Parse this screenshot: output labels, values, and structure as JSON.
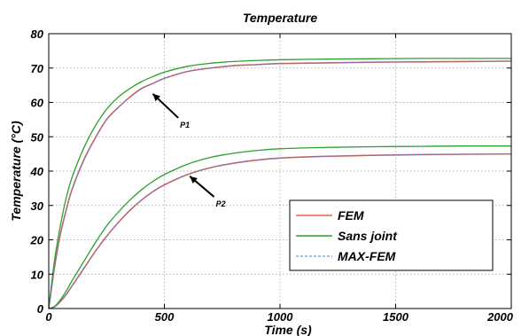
{
  "chart_data": {
    "type": "line",
    "title": "Temperature",
    "xlabel": "Time (s)",
    "ylabel": "Temperature (°C)",
    "xlim": [
      0,
      2000
    ],
    "ylim": [
      0,
      80
    ],
    "xticks": [
      0,
      500,
      1000,
      1500,
      2000
    ],
    "yticks": [
      0,
      10,
      20,
      30,
      40,
      50,
      60,
      70,
      80
    ],
    "grid": true,
    "legend_position": "bottom-right",
    "x": [
      0,
      25,
      50,
      75,
      100,
      150,
      200,
      250,
      300,
      350,
      400,
      450,
      500,
      600,
      700,
      800,
      900,
      1000,
      1200,
      1400,
      1600,
      1800,
      2000
    ],
    "series": [
      {
        "name": "FEM",
        "group": "P1",
        "color": "#e8604a",
        "values": [
          0,
          12,
          21.5,
          28.5,
          34.5,
          43,
          49.5,
          55,
          58.5,
          61.5,
          64,
          65.5,
          67,
          69,
          70,
          70.7,
          71,
          71.3,
          71.5,
          71.7,
          71.8,
          71.9,
          72
        ]
      },
      {
        "name": "Sans joint",
        "group": "P1",
        "color": "#2ca02c",
        "values": [
          0,
          14,
          24,
          32,
          38,
          46.5,
          53,
          58,
          61.5,
          64,
          66,
          67.5,
          68.8,
          70.5,
          71.4,
          71.9,
          72.2,
          72.4,
          72.6,
          72.7,
          72.8,
          72.8,
          72.8
        ]
      },
      {
        "name": "MAX-FEM",
        "group": "P1",
        "color": "#4a7fd4",
        "values": [
          0,
          12,
          21.5,
          28.5,
          34.5,
          43,
          49.5,
          55,
          58.5,
          61.5,
          64,
          65.5,
          67,
          69,
          70,
          70.7,
          71,
          71.3,
          71.5,
          71.7,
          71.8,
          71.9,
          72
        ]
      },
      {
        "name": "FEM",
        "group": "P2",
        "color": "#e8604a",
        "values": [
          0,
          0.5,
          2,
          4,
          6.5,
          11.5,
          16.5,
          21,
          25,
          28.5,
          31.5,
          34,
          36,
          39,
          41,
          42.3,
          43.2,
          43.8,
          44.3,
          44.6,
          44.8,
          44.9,
          45
        ]
      },
      {
        "name": "Sans joint",
        "group": "P2",
        "color": "#2ca02c",
        "values": [
          0,
          0.6,
          2.5,
          5,
          8,
          13.5,
          19,
          24,
          28,
          31.5,
          34.5,
          37,
          39,
          42,
          44,
          45.2,
          46,
          46.5,
          46.9,
          47.1,
          47.2,
          47.3,
          47.3
        ]
      },
      {
        "name": "MAX-FEM",
        "group": "P2",
        "color": "#4a7fd4",
        "values": [
          0,
          0.5,
          2,
          4,
          6.5,
          11.5,
          16.5,
          21,
          25,
          28.5,
          31.5,
          34,
          36,
          39,
          41,
          42.3,
          43.2,
          43.8,
          44.3,
          44.6,
          44.8,
          44.9,
          45
        ]
      }
    ],
    "legend": [
      {
        "label": "FEM",
        "color": "#e8604a",
        "dash": "solid"
      },
      {
        "label": "Sans joint",
        "color": "#2ca02c",
        "dash": "solid"
      },
      {
        "label": "MAX-FEM",
        "color": "#4a7fd4",
        "dash": "dashed"
      }
    ],
    "annotations": [
      {
        "text": "P1",
        "arrow_tip": [
          450,
          62.5
        ],
        "arrow_tail": [
          560,
          55.5
        ]
      },
      {
        "text": "P2",
        "arrow_tip": [
          610,
          38.5
        ],
        "arrow_tail": [
          715,
          32.5
        ]
      }
    ]
  }
}
